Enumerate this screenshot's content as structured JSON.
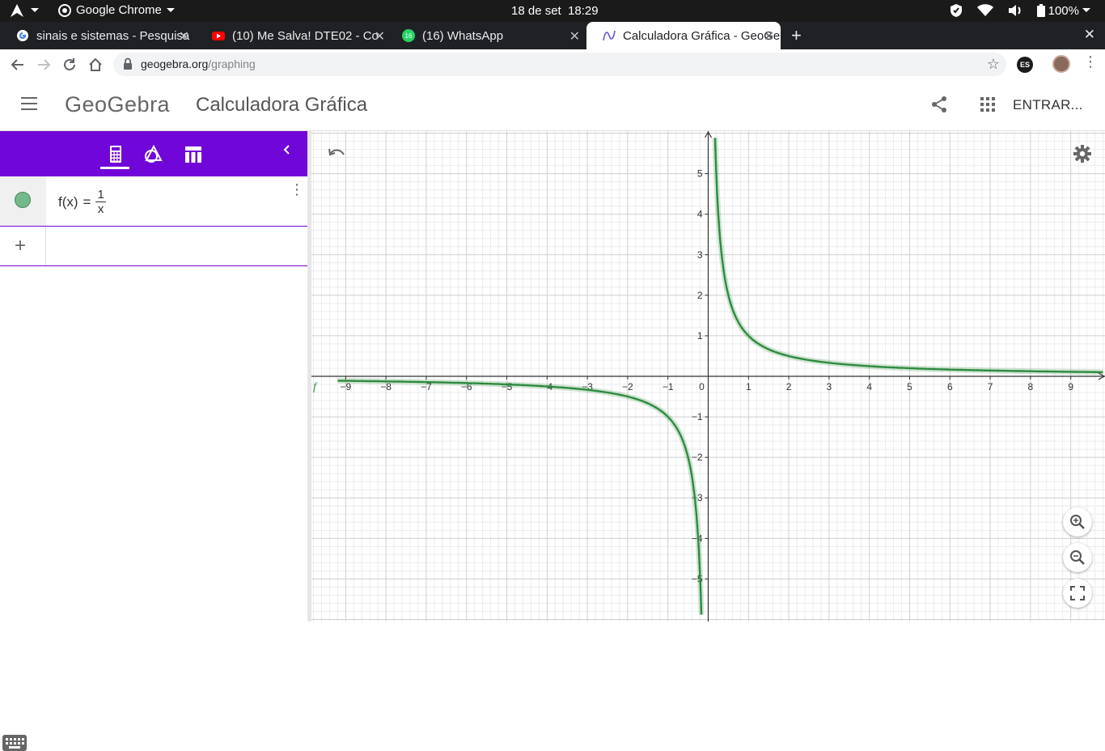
{
  "os": {
    "app_name": "Google Chrome",
    "clock": "18 de set  18:29",
    "battery": "100%",
    "icons": [
      "shield-icon",
      "wifi-icon",
      "volume-icon",
      "battery-icon"
    ]
  },
  "tabs": [
    {
      "title": "sinais e sistemas - Pesquisa",
      "favicon": "google-icon"
    },
    {
      "title": "(10) Me Salva! DTE02 - Co",
      "favicon": "youtube-icon"
    },
    {
      "title": "(16) WhatsApp",
      "favicon": "whatsapp-icon"
    },
    {
      "title": "Calculadora Gráfica - GeoGebra",
      "favicon": "geogebra-icon",
      "active": true
    }
  ],
  "address": {
    "host": "geogebra.org",
    "path": "/graphing"
  },
  "extension_label": "ES",
  "geogebra": {
    "logo": "GeoGebra",
    "title": "Calculadora Gráfica",
    "login": "ENTRAR..."
  },
  "algebra": {
    "expr_lhs": "f(x)",
    "expr_eq": "=",
    "expr_num": "1",
    "expr_den": "x",
    "color": "#2e8b3e"
  },
  "chart_data": {
    "type": "line",
    "function": "f(x) = 1/x",
    "series": [
      {
        "name": "f",
        "color": "#2e8b3e",
        "branches": [
          {
            "x": [
              -9.2,
              -8,
              -7,
              -6,
              -5,
              -4,
              -3,
              -2,
              -1.5,
              -1,
              -0.7,
              -0.5,
              -0.35,
              -0.25,
              -0.2,
              -0.17
            ],
            "y": [
              -0.109,
              -0.125,
              -0.143,
              -0.167,
              -0.2,
              -0.25,
              -0.333,
              -0.5,
              -0.667,
              -1,
              -1.429,
              -2,
              -2.857,
              -4,
              -5,
              -5.88
            ]
          },
          {
            "x": [
              0.17,
              0.2,
              0.25,
              0.35,
              0.5,
              0.7,
              1,
              1.5,
              2,
              3,
              4,
              5,
              6,
              7,
              8,
              9,
              9.8
            ],
            "y": [
              5.88,
              5,
              4,
              2.857,
              2,
              1.429,
              1,
              0.667,
              0.5,
              0.333,
              0.25,
              0.2,
              0.167,
              0.143,
              0.125,
              0.111,
              0.102
            ]
          }
        ]
      }
    ],
    "xlim": [
      -9.85,
      9.85
    ],
    "ylim": [
      -6.05,
      6.05
    ],
    "x_ticks": [
      "−9",
      "−8",
      "−7",
      "−6",
      "−5",
      "−4",
      "−3",
      "−2",
      "−1",
      "0",
      "1",
      "2",
      "3",
      "4",
      "5",
      "6",
      "7",
      "8",
      "9"
    ],
    "y_ticks": [
      "5",
      "4",
      "3",
      "2",
      "1",
      "−1",
      "−2",
      "−3",
      "−4",
      "−5"
    ],
    "grid": true,
    "curve_label": "f"
  }
}
